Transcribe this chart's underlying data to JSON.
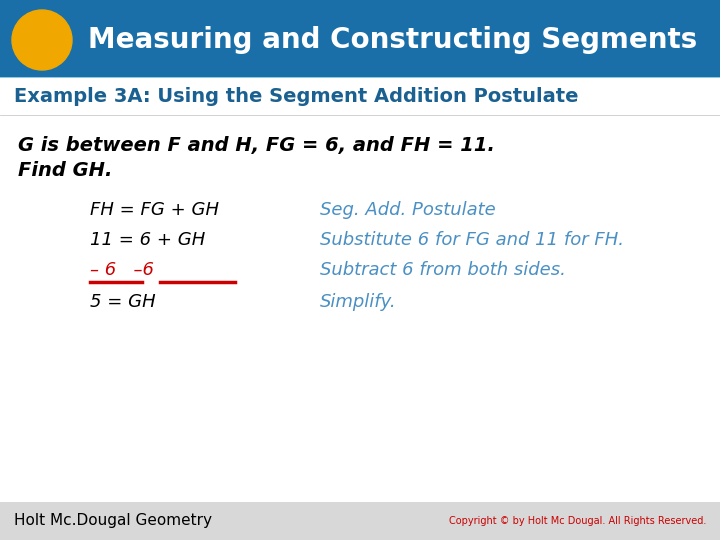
{
  "title": "Measuring and Constructing Segments",
  "title_bg_color": "#1a6fa8",
  "title_text_color": "#ffffff",
  "circle_color": "#f0a800",
  "subtitle": "Example 3A: Using the Segment Addition Postulate",
  "subtitle_text_color": "#1a6090",
  "subtitle_bg_color": "#ffffff",
  "problem_line1": "G is between F and H, FG = 6, and FH = 11.",
  "problem_line2": "Find GH.",
  "body_bg_color": "#ffffff",
  "step1_left": "FH = FG + GH",
  "step1_right": "Seg. Add. Postulate",
  "step2_left": "11 = 6 + GH",
  "step2_right": "Substitute 6 for FG and 11 for FH.",
  "step3_left": "– 6   –6",
  "step3_right": "Subtract 6 from both sides.",
  "step4_left": "5 = GH",
  "step4_right": "Simplify.",
  "step_text_color": "#000000",
  "step_right_color": "#4a90c4",
  "step3_color": "#cc0000",
  "footer_text": "Holt Mc.Dougal Geometry",
  "footer_bg_color": "#d8d8d8",
  "footer_text_color": "#000000",
  "copyright_text": "Copyright © by Holt Mc Dougal. All Rights Reserved.",
  "copyright_color": "#cc0000",
  "main_bg_color": "#8fc8e0"
}
